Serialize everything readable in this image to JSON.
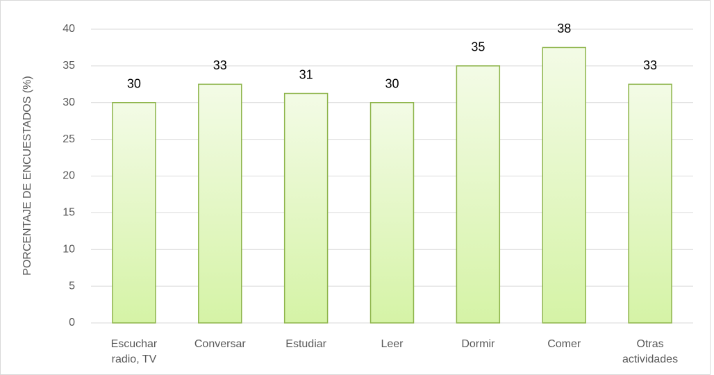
{
  "chart_data": {
    "type": "bar",
    "y_axis_label": "PORCENTAJE DE ENCUESTADOS (%)",
    "categories": [
      "Escuchar radio, TV",
      "Conversar",
      "Estudiar",
      "Leer",
      "Dormir",
      "Comer",
      "Otras actividades"
    ],
    "values": [
      30,
      32.5,
      31.25,
      30,
      35,
      37.5,
      32.5
    ],
    "value_labels": [
      "30",
      "33",
      "31",
      "30",
      "35",
      "38",
      "33"
    ],
    "color": "#8db44a",
    "ylim": [
      0,
      40
    ],
    "yticks": [
      0,
      5,
      10,
      15,
      20,
      25,
      30,
      35,
      40
    ],
    "grid": true
  }
}
